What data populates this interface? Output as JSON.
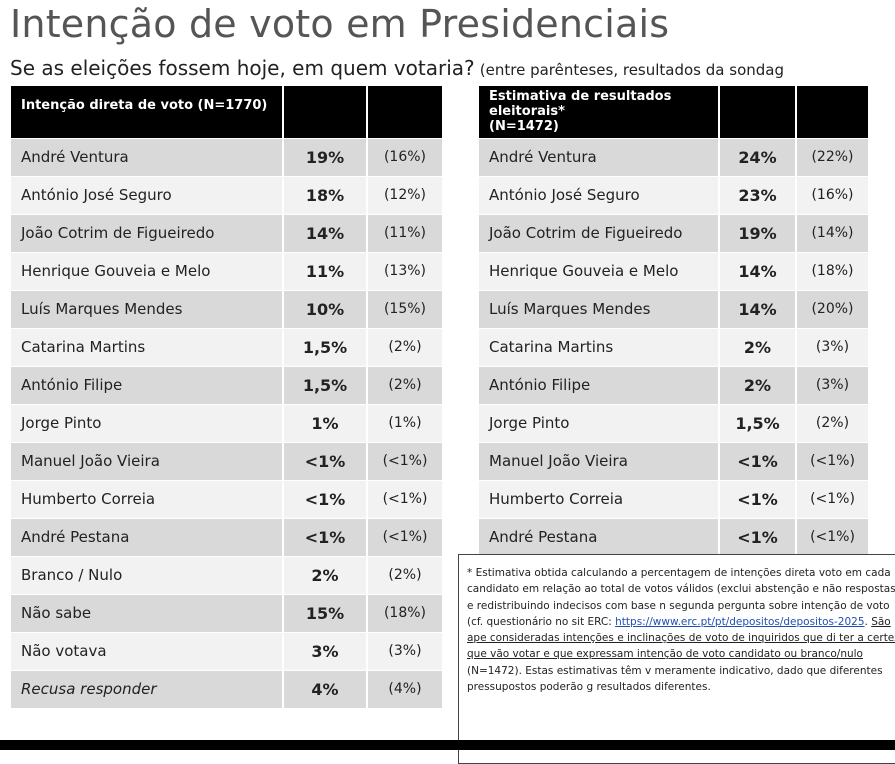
{
  "title": "Intenção de voto em Presidenciais",
  "subtitle": {
    "question": "Se as eleições fossem hoje, em quem votaria?",
    "note": "(entre parênteses, resultados da sondag"
  },
  "table_left": {
    "header": "Intenção direta de voto (N=1770)",
    "rows": [
      {
        "name": "André Ventura",
        "pct": "19%",
        "prev": "(16%)"
      },
      {
        "name": "António José Seguro",
        "pct": "18%",
        "prev": "(12%)"
      },
      {
        "name": "João Cotrim de Figueiredo",
        "pct": "14%",
        "prev": "(11%)"
      },
      {
        "name": "Henrique Gouveia e Melo",
        "pct": "11%",
        "prev": "(13%)"
      },
      {
        "name": "Luís Marques Mendes",
        "pct": "10%",
        "prev": "(15%)"
      },
      {
        "name": "Catarina Martins",
        "pct": "1,5%",
        "prev": "(2%)"
      },
      {
        "name": "António Filipe",
        "pct": "1,5%",
        "prev": "(2%)"
      },
      {
        "name": "Jorge Pinto",
        "pct": "1%",
        "prev": "(1%)"
      },
      {
        "name": "Manuel João Vieira",
        "pct": "<1%",
        "prev": "(<1%)"
      },
      {
        "name": "Humberto Correia",
        "pct": "<1%",
        "prev": "(<1%)"
      },
      {
        "name": "André Pestana",
        "pct": "<1%",
        "prev": "(<1%)"
      },
      {
        "name": "Branco / Nulo",
        "pct": "2%",
        "prev": "(2%)"
      },
      {
        "name": "Não sabe",
        "pct": "15%",
        "prev": "(18%)"
      },
      {
        "name": "Não votava",
        "pct": "3%",
        "prev": "(3%)"
      },
      {
        "name": "Recusa responder",
        "pct": "4%",
        "prev": "(4%)",
        "italic": true
      }
    ]
  },
  "table_right": {
    "header_line1": "Estimativa de resultados eleitorais*",
    "header_line2": "(N=1472)",
    "rows": [
      {
        "name": "André Ventura",
        "pct": "24%",
        "prev": "(22%)"
      },
      {
        "name": "António José Seguro",
        "pct": "23%",
        "prev": "(16%)"
      },
      {
        "name": "João Cotrim de Figueiredo",
        "pct": "19%",
        "prev": "(14%)"
      },
      {
        "name": "Henrique Gouveia e Melo",
        "pct": "14%",
        "prev": "(18%)"
      },
      {
        "name": "Luís Marques Mendes",
        "pct": "14%",
        "prev": "(20%)"
      },
      {
        "name": "Catarina Martins",
        "pct": "2%",
        "prev": "(3%)"
      },
      {
        "name": "António Filipe",
        "pct": "2%",
        "prev": "(3%)"
      },
      {
        "name": "Jorge Pinto",
        "pct": "1,5%",
        "prev": "(2%)"
      },
      {
        "name": "Manuel João Vieira",
        "pct": "<1%",
        "prev": "(<1%)"
      },
      {
        "name": "Humberto Correia",
        "pct": "<1%",
        "prev": "(<1%)"
      },
      {
        "name": "André Pestana",
        "pct": "<1%",
        "prev": "(<1%)"
      }
    ]
  },
  "footnote": {
    "p1": "* Estimativa obtida calculando a percentagem de intenções direta voto em cada candidato em relação ao total de votos válidos (exclui abstenção e não respostas) e redistribuindo indecisos com base n segunda pergunta sobre intenção de voto (cf. questionário no sit ERC: ",
    "link": "https://www.erc.pt/pt/depositos/depositos-2025",
    "p2": ". ",
    "u1": "São ape consideradas intenções e inclinações de voto de inquiridos que di ter a certeza que vão votar e que expressam intenção de voto candidato ou branco/nulo",
    "p3": " (N=1472). Estas estimativas têm v meramente indicativo, dado que diferentes pressupostos poderão g resultados diferentes."
  },
  "colors": {
    "header_bg": "#000000",
    "row_dark": "#d9d9d9",
    "row_light": "#f2f2f2",
    "link": "#1f4fb5"
  }
}
